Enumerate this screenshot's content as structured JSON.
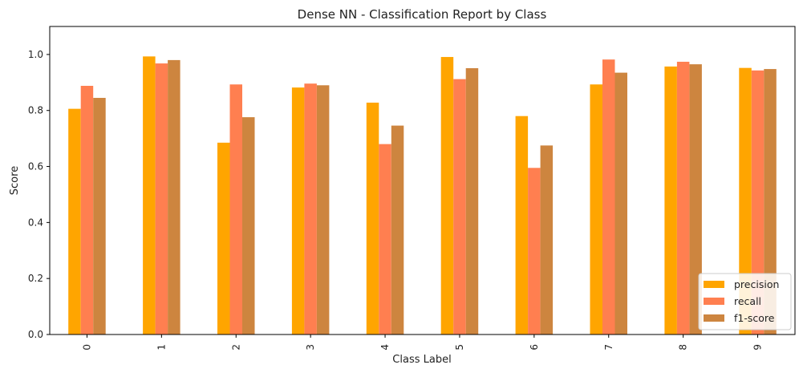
{
  "chart_data": {
    "type": "bar",
    "title": "Dense NN - Classification Report by Class",
    "xlabel": "Class Label",
    "ylabel": "Score",
    "ylim": [
      0,
      1.1
    ],
    "yticks": [
      "0.0",
      "0.2",
      "0.4",
      "0.6",
      "0.8",
      "1.0"
    ],
    "categories": [
      "0",
      "1",
      "2",
      "3",
      "4",
      "5",
      "6",
      "7",
      "8",
      "9"
    ],
    "series": [
      {
        "name": "precision",
        "color": "#FFA500",
        "values": [
          0.806,
          0.993,
          0.685,
          0.882,
          0.828,
          0.991,
          0.78,
          0.893,
          0.957,
          0.952
        ]
      },
      {
        "name": "recall",
        "color": "#FF7F50",
        "values": [
          0.888,
          0.968,
          0.893,
          0.896,
          0.68,
          0.912,
          0.595,
          0.982,
          0.974,
          0.943
        ]
      },
      {
        "name": "f1-score",
        "color": "#CD853F",
        "values": [
          0.845,
          0.98,
          0.776,
          0.89,
          0.746,
          0.951,
          0.675,
          0.935,
          0.965,
          0.948
        ]
      }
    ],
    "legend_position": "lower-right",
    "grid": false
  }
}
